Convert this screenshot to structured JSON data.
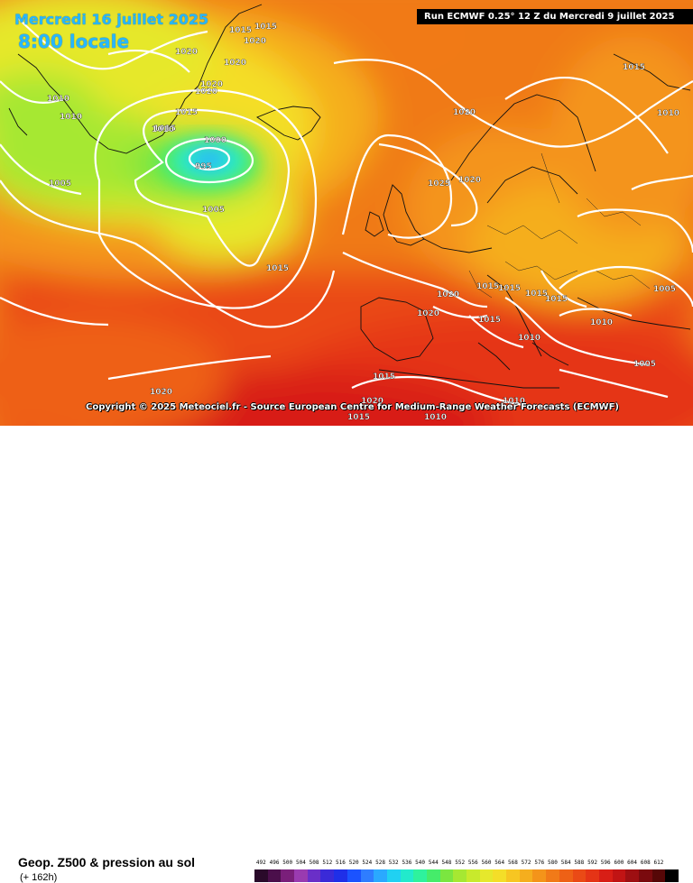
{
  "header": {
    "date": "Mercredi 16 juillet 2025",
    "local_time": "8:00 locale",
    "run_info": "Run ECMWF 0.25° 12 Z du Mercredi 9 juillet 2025"
  },
  "copyright": "Copyright © 2025 Meteociel.fr - Source European Centre for Medium-Range Weather Forecasts (ECMWF)",
  "footer": {
    "field_title": "Geop. Z500 & pression au sol",
    "lead_time": "(+ 162h)"
  },
  "colors": {
    "isobar": "#ffffff",
    "coastline": "#111111",
    "scale_swatches": [
      "#2a0a2a",
      "#4b0f4b",
      "#7a1f7a",
      "#9a3bb0",
      "#6a2fc8",
      "#3a2ad8",
      "#1f2fe8",
      "#1b53ff",
      "#2f7dff",
      "#2aa9ff",
      "#20d1f2",
      "#22eacc",
      "#2ef29d",
      "#45ec6a",
      "#7be640",
      "#a6e832",
      "#c8ea2c",
      "#e6e82c",
      "#f4de28",
      "#f7c622",
      "#f5ae1e",
      "#f4941a",
      "#f17a18",
      "#ee6116",
      "#ea4a16",
      "#e53416",
      "#d81e16",
      "#c11414",
      "#9e0f12",
      "#7a0a0e",
      "#560707",
      "#000000"
    ]
  },
  "scale_labels": [
    "492",
    "496",
    "500",
    "504",
    "508",
    "512",
    "516",
    "520",
    "524",
    "528",
    "532",
    "536",
    "540",
    "544",
    "548",
    "552",
    "556",
    "560",
    "564",
    "568",
    "572",
    "576",
    "580",
    "584",
    "588",
    "592",
    "596",
    "600",
    "604",
    "608",
    "612",
    ""
  ],
  "isobar_labels": [
    "1015",
    "1015",
    "1020",
    "1020",
    "1020",
    "1020",
    "1020",
    "1015",
    "1010",
    "1010",
    "1015",
    "1010",
    "1000",
    "995",
    "1005",
    "1005",
    "1015",
    "1020",
    "1025",
    "1020",
    "1015",
    "1020",
    "1020",
    "1015",
    "1015",
    "1015",
    "1015",
    "1010",
    "1005",
    "1015",
    "1010",
    "1005",
    "1020",
    "1020",
    "1015",
    "1015",
    "1010",
    "1010",
    "1010"
  ]
}
